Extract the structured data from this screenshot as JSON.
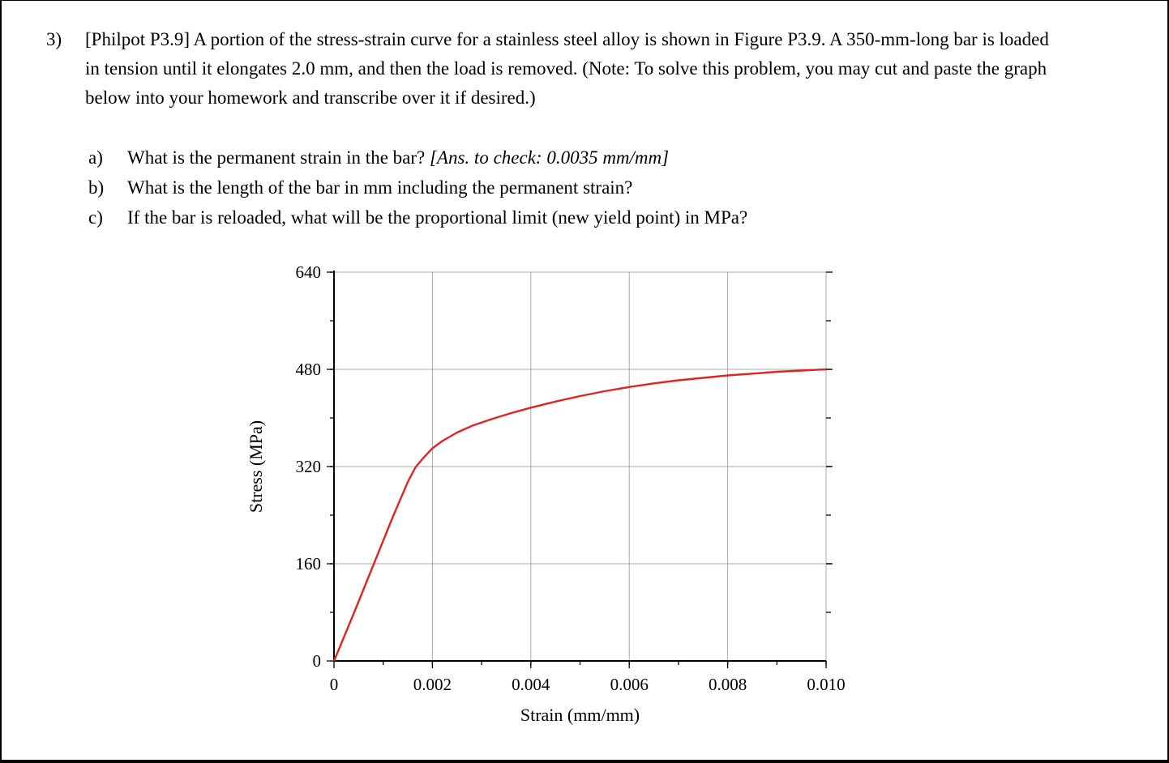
{
  "problem": {
    "number": "3)",
    "statement": "[Philpot P3.9] A portion of the stress-strain curve for a stainless steel alloy is shown in Figure P3.9. A 350-mm-long bar is loaded in tension until it elongates 2.0 mm, and then the load is removed. (Note: To solve this problem, you may cut and paste the graph below into your homework and transcribe over it if desired.)",
    "questions": [
      {
        "label": "a)",
        "text": "What is the permanent strain in the bar? ",
        "note": "[Ans. to check: 0.0035 mm/mm]"
      },
      {
        "label": "b)",
        "text": "What is the length of the bar in mm including the permanent strain?",
        "note": ""
      },
      {
        "label": "c)",
        "text": "If the bar is reloaded, what will be the proportional limit (new yield point) in MPa?",
        "note": ""
      }
    ]
  },
  "chart_data": {
    "type": "line",
    "title": "",
    "xlabel": "Strain (mm/mm)",
    "ylabel": "Stress (MPa)",
    "xlim": [
      0,
      0.01
    ],
    "ylim": [
      0,
      640
    ],
    "grid": true,
    "x_major_ticks": [
      0,
      0.002,
      0.004,
      0.006,
      0.008,
      0.01
    ],
    "x_tick_labels": [
      "0",
      "0.002",
      "0.004",
      "0.006",
      "0.008",
      "0.010"
    ],
    "x_minor_step": 0.001,
    "y_major_ticks": [
      0,
      160,
      320,
      480,
      640
    ],
    "y_tick_labels": [
      "0",
      "160",
      "320",
      "480",
      "640"
    ],
    "y_minor_step": 80,
    "series": [
      {
        "name": "stress-strain-curve",
        "color": "#e02424",
        "points": [
          [
            0,
            0
          ],
          [
            0.0004,
            78
          ],
          [
            0.0008,
            158
          ],
          [
            0.0012,
            238
          ],
          [
            0.0015,
            295
          ],
          [
            0.00165,
            318
          ],
          [
            0.0018,
            333
          ],
          [
            0.002,
            350
          ],
          [
            0.0022,
            362
          ],
          [
            0.0025,
            376
          ],
          [
            0.0028,
            387
          ],
          [
            0.0032,
            398
          ],
          [
            0.0036,
            408
          ],
          [
            0.004,
            417
          ],
          [
            0.0045,
            427
          ],
          [
            0.005,
            436
          ],
          [
            0.0055,
            444
          ],
          [
            0.006,
            451
          ],
          [
            0.0065,
            457
          ],
          [
            0.007,
            462
          ],
          [
            0.0075,
            466
          ],
          [
            0.008,
            470
          ],
          [
            0.0085,
            473
          ],
          [
            0.009,
            476
          ],
          [
            0.0095,
            478
          ],
          [
            0.01,
            480
          ]
        ]
      }
    ]
  }
}
